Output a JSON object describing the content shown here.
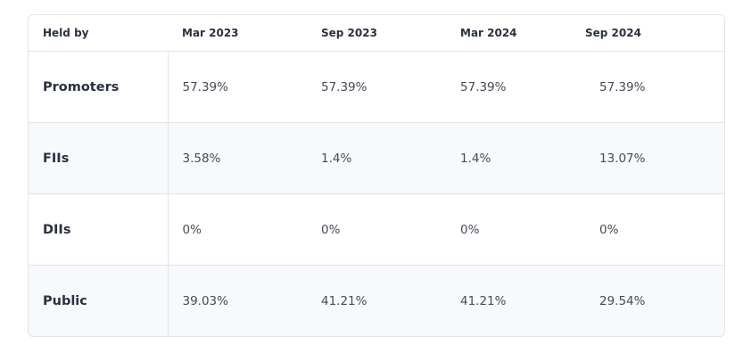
{
  "table": {
    "header": [
      "Held by",
      "Mar 2023",
      "Sep 2023",
      "Mar 2024",
      "Sep 2024"
    ],
    "rows": [
      [
        "Promoters",
        "57.39%",
        "57.39%",
        "57.39%",
        "57.39%"
      ],
      [
        "FIIs",
        "3.58%",
        "1.4%",
        "1.4%",
        "13.07%"
      ],
      [
        "DIIs",
        "0%",
        "0%",
        "0%",
        "0%"
      ],
      [
        "Public",
        "39.03%",
        "41.21%",
        "41.21%",
        "29.54%"
      ]
    ]
  }
}
